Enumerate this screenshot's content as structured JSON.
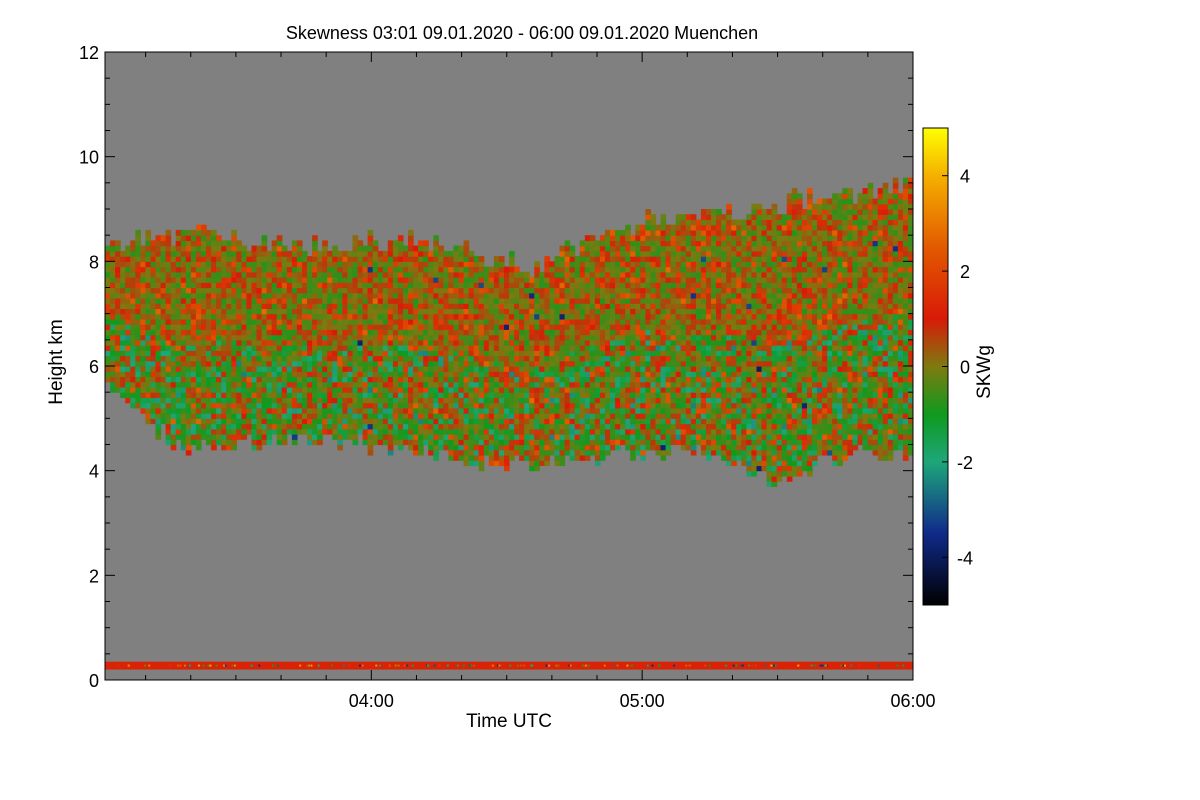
{
  "chart_data": {
    "type": "heatmap",
    "title": "Skewness   03:01 09.01.2020 - 06:00 09.01.2020 Muenchen",
    "xlabel": "Time UTC",
    "ylabel": "Height km",
    "colorbar_label": "SKWg",
    "x_range_hours": [
      3.0167,
      6.0
    ],
    "x_ticks": [
      {
        "value": 4,
        "label": "04:00"
      },
      {
        "value": 5,
        "label": "05:00"
      },
      {
        "value": 6,
        "label": "06:00"
      }
    ],
    "ylim": [
      0,
      12
    ],
    "y_ticks": [
      {
        "value": 0,
        "label": "0"
      },
      {
        "value": 2,
        "label": "2"
      },
      {
        "value": 4,
        "label": "4"
      },
      {
        "value": 6,
        "label": "6"
      },
      {
        "value": 8,
        "label": "8"
      },
      {
        "value": 10,
        "label": "10"
      },
      {
        "value": 12,
        "label": "12"
      }
    ],
    "color_range": [
      -5,
      5
    ],
    "colorbar_ticks": [
      {
        "value": 4,
        "label": "4"
      },
      {
        "value": 2,
        "label": "2"
      },
      {
        "value": 0,
        "label": "0"
      },
      {
        "value": -2,
        "label": "-2"
      },
      {
        "value": -4,
        "label": "-4"
      }
    ],
    "colormap_stops": [
      {
        "v": -5,
        "color": "#000000"
      },
      {
        "v": -3.5,
        "color": "#102a8a"
      },
      {
        "v": -2,
        "color": "#1ea67a"
      },
      {
        "v": -1,
        "color": "#0f9a1e"
      },
      {
        "v": 0,
        "color": "#7e7a10"
      },
      {
        "v": 1,
        "color": "#d81a08"
      },
      {
        "v": 2.5,
        "color": "#e25a00"
      },
      {
        "v": 4,
        "color": "#f5b000"
      },
      {
        "v": 5,
        "color": "#ffff00"
      }
    ],
    "background_color": "#808080",
    "cloud_layer": {
      "description": "turbulent cloud layer",
      "base_km_at": [
        [
          3.02,
          5.7
        ],
        [
          3.3,
          4.4
        ],
        [
          3.6,
          4.6
        ],
        [
          4.0,
          4.5
        ],
        [
          4.45,
          4.1
        ],
        [
          4.9,
          4.3
        ],
        [
          5.2,
          4.4
        ],
        [
          5.5,
          3.8
        ],
        [
          5.8,
          4.4
        ],
        [
          6.0,
          4.2
        ]
      ],
      "top_km_at": [
        [
          3.02,
          8.4
        ],
        [
          3.3,
          8.5
        ],
        [
          3.8,
          8.3
        ],
        [
          4.2,
          8.4
        ],
        [
          4.6,
          7.9
        ],
        [
          5.0,
          8.8
        ],
        [
          5.3,
          8.9
        ],
        [
          5.6,
          9.2
        ],
        [
          6.0,
          9.5
        ]
      ],
      "skewness_pattern": "mostly near 0 with positive (red) streaks and negative (green) bands around 5-6.5 km"
    },
    "near_ground_band_km": [
      0.2,
      0.35
    ]
  }
}
